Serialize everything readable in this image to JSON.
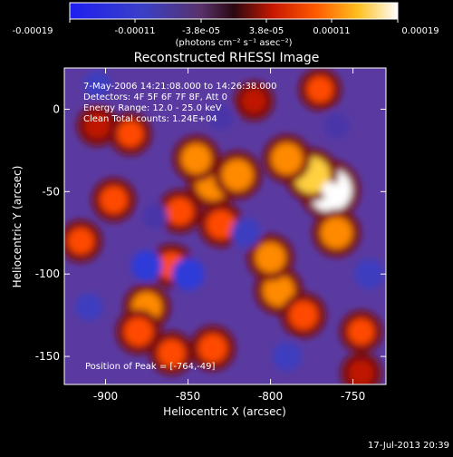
{
  "colorbar": {
    "tick_labels": [
      "-0.00019",
      "-0.00011",
      "-3.8e-05",
      "3.8e-05",
      "0.00011",
      "0.00019"
    ],
    "units": "(photons cm⁻² s⁻¹ asec⁻²)"
  },
  "plot": {
    "annotations": [
      "7-May-2006 14:21:08.000 to 14:26:38.000",
      "Detectors: 4F 5F 6F 7F 8F, Att 0",
      "Energy Range: 12.0 - 25.0 keV",
      "Clean     Total counts: 1.24E+04"
    ],
    "peak_label": "Position of Peak = [-764,-49]"
  },
  "footer": {
    "timestamp": "17-Jul-2013 20:39"
  },
  "chart_data": {
    "type": "heatmap",
    "title": "Reconstructed RHESSI Image",
    "xlabel": "Heliocentric X (arcsec)",
    "ylabel": "Heliocentric Y (arcsec)",
    "xlim": [
      -925,
      -730
    ],
    "ylim": [
      -167,
      25
    ],
    "x_ticks": [
      "-900",
      "-850",
      "-800",
      "-750"
    ],
    "y_ticks": [
      "0",
      "-50",
      "-100",
      "-150"
    ],
    "zlim": [
      -0.00019,
      0.00019
    ],
    "colormap": "red-temperature",
    "peak": {
      "x": -764,
      "y": -49,
      "value": 0.00019
    },
    "blobs": [
      {
        "x": -764,
        "y": -49,
        "value": 0.00019
      },
      {
        "x": -775,
        "y": -40,
        "value": 0.00014
      },
      {
        "x": -790,
        "y": -30,
        "value": 0.0001
      },
      {
        "x": -760,
        "y": -75,
        "value": 0.0001
      },
      {
        "x": -835,
        "y": -45,
        "value": 0.00012
      },
      {
        "x": -845,
        "y": -30,
        "value": 9e-05
      },
      {
        "x": -820,
        "y": -40,
        "value": 0.0001
      },
      {
        "x": -830,
        "y": -70,
        "value": 8e-05
      },
      {
        "x": -855,
        "y": -62,
        "value": 7e-05
      },
      {
        "x": -860,
        "y": -95,
        "value": 7e-05
      },
      {
        "x": -795,
        "y": -110,
        "value": 0.0001
      },
      {
        "x": -800,
        "y": -90,
        "value": 9e-05
      },
      {
        "x": -780,
        "y": -125,
        "value": 8e-05
      },
      {
        "x": -875,
        "y": -120,
        "value": 9e-05
      },
      {
        "x": -880,
        "y": -135,
        "value": 8e-05
      },
      {
        "x": -860,
        "y": -148,
        "value": 7e-05
      },
      {
        "x": -835,
        "y": -145,
        "value": 8e-05
      },
      {
        "x": -895,
        "y": -55,
        "value": 7e-05
      },
      {
        "x": -905,
        "y": -10,
        "value": 5e-05
      },
      {
        "x": -915,
        "y": -80,
        "value": 6e-05
      },
      {
        "x": -885,
        "y": -15,
        "value": 6e-05
      },
      {
        "x": -745,
        "y": -135,
        "value": 6e-05
      },
      {
        "x": -745,
        "y": -160,
        "value": 5e-05
      },
      {
        "x": -770,
        "y": 12,
        "value": 6e-05
      },
      {
        "x": -810,
        "y": 5,
        "value": 4e-05
      },
      {
        "x": -850,
        "y": -100,
        "value": -0.00011
      },
      {
        "x": -875,
        "y": -95,
        "value": -0.0001
      },
      {
        "x": -815,
        "y": -75,
        "value": -9e-05
      },
      {
        "x": -740,
        "y": -100,
        "value": -9e-05
      },
      {
        "x": -790,
        "y": -150,
        "value": -8e-05
      },
      {
        "x": -910,
        "y": -120,
        "value": -7e-05
      },
      {
        "x": -905,
        "y": 15,
        "value": -7e-05
      },
      {
        "x": -830,
        "y": -5,
        "value": -6e-05
      },
      {
        "x": -760,
        "y": -10,
        "value": -6e-05
      },
      {
        "x": -870,
        "y": -65,
        "value": -6e-05
      }
    ]
  }
}
